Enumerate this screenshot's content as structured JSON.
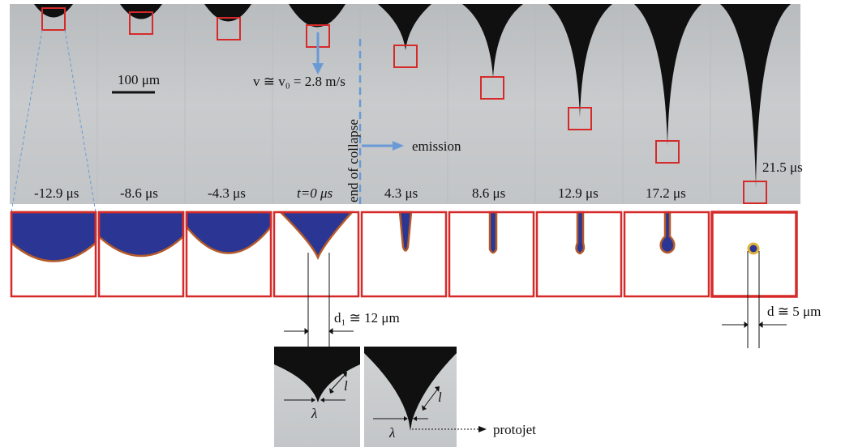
{
  "scale_bar_label": "100 μm",
  "velocity_label": "v ≅ v₀ = 2.8 m/s",
  "end_of_collapse_label": "end of collapse",
  "emission_label": "emission",
  "frames": [
    {
      "time": "-12.9 μs"
    },
    {
      "time": "-8.6 μs"
    },
    {
      "time": "-4.3 μs"
    },
    {
      "time": "t=0 μs"
    },
    {
      "time": "4.3 μs"
    },
    {
      "time": "8.6 μs"
    },
    {
      "time": "12.9 μs"
    },
    {
      "time": "17.2 μs"
    },
    {
      "time": "21.5 μs"
    }
  ],
  "d1_label": "d₁ ≅ 12 μm",
  "d_label": "d ≅ 5 μm",
  "l_label": "l",
  "lambda_label": "λ",
  "protojet_label": "protojet",
  "colors": {
    "fluid_dark": "#101010",
    "background_gray": "#c4c7c9",
    "box_red": "#d62a2a",
    "arrow_blue": "#6a9ad6",
    "sim_blue": "#2a3594",
    "sim_edge": "#b35a2a"
  }
}
